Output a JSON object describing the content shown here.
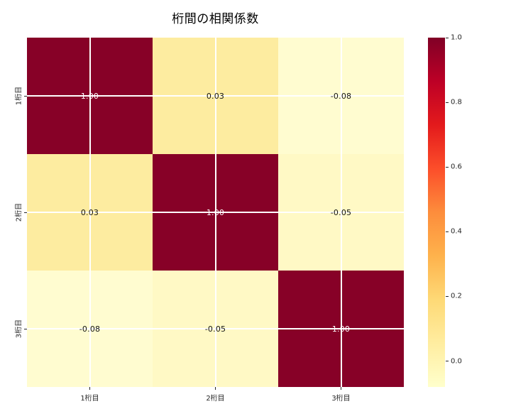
{
  "figure": {
    "background": "#ffffff"
  },
  "chart_data": {
    "type": "heatmap",
    "title": "桁間の相関係数",
    "x_ticklabels": [
      "1桁目",
      "2桁目",
      "3桁目"
    ],
    "y_ticklabels": [
      "1桁目",
      "2桁目",
      "3桁目"
    ],
    "matrix": [
      [
        1.0,
        0.03,
        -0.08
      ],
      [
        0.03,
        1.0,
        -0.05
      ],
      [
        -0.08,
        -0.05,
        1.0
      ]
    ],
    "cell_labels": [
      [
        "1.00",
        "0.03",
        "-0.08"
      ],
      [
        "0.03",
        "1.00",
        "-0.05"
      ],
      [
        "-0.08",
        "-0.05",
        "1.00"
      ]
    ],
    "cell_colors": [
      [
        "#870127",
        "#fdeca0",
        "#fffcd0"
      ],
      [
        "#fdeca0",
        "#870127",
        "#fff9c5"
      ],
      [
        "#fffcd0",
        "#fff9c5",
        "#870127"
      ]
    ],
    "cell_text_colors": [
      [
        "#ffffff",
        "#131313",
        "#131313"
      ],
      [
        "#131313",
        "#ffffff",
        "#131313"
      ],
      [
        "#131313",
        "#131313",
        "#ffffff"
      ]
    ],
    "colormap": "YlOrRd",
    "vmin": -0.08,
    "vmax": 1.0,
    "grid": true,
    "legend_position": "right-colorbar",
    "colorbar": {
      "tick_labels": [
        "1.0",
        "0.8",
        "0.6",
        "0.4",
        "0.2",
        "0.0"
      ],
      "tick_values": [
        1.0,
        0.8,
        0.6,
        0.4,
        0.2,
        0.0
      ],
      "gradient_top_to_bottom": [
        "#800026",
        "#bd0026",
        "#e31a1c",
        "#fc4e2a",
        "#fd8d3c",
        "#feb24c",
        "#fed976",
        "#ffeda0",
        "#ffffcc"
      ]
    },
    "tick_color": "#262626"
  }
}
